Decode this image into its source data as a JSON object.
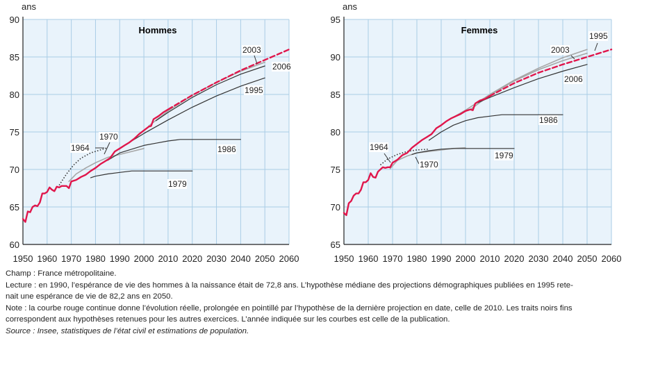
{
  "chart_data": [
    {
      "type": "line",
      "title": "Hommes",
      "ylabel": "ans",
      "xlabel": "",
      "xlim": [
        1950,
        2060
      ],
      "ylim": [
        60,
        90
      ],
      "xticks": [
        "1950",
        "1960",
        "1970",
        "1980",
        "1990",
        "2000",
        "2010",
        "2020",
        "2030",
        "2040",
        "2050",
        "2060"
      ],
      "yticks": [
        "60",
        "65",
        "70",
        "75",
        "80",
        "85",
        "90"
      ],
      "grid": true,
      "series": [
        {
          "name": "",
          "color": "#e0164b",
          "style": "solid",
          "width": 2.4,
          "points": [
            [
              1950,
              63.4
            ],
            [
              1951,
              63.0
            ],
            [
              1952,
              64.4
            ],
            [
              1953,
              64.3
            ],
            [
              1954,
              65.0
            ],
            [
              1955,
              65.2
            ],
            [
              1956,
              65.1
            ],
            [
              1957,
              65.6
            ],
            [
              1958,
              66.8
            ],
            [
              1959,
              66.8
            ],
            [
              1960,
              67.0
            ],
            [
              1961,
              67.6
            ],
            [
              1962,
              67.3
            ],
            [
              1963,
              67.1
            ],
            [
              1964,
              67.7
            ],
            [
              1965,
              67.6
            ],
            [
              1966,
              67.8
            ],
            [
              1967,
              67.8
            ],
            [
              1968,
              67.8
            ],
            [
              1969,
              67.5
            ],
            [
              1970,
              68.4
            ],
            [
              1972,
              68.6
            ],
            [
              1974,
              69.0
            ],
            [
              1976,
              69.3
            ],
            [
              1978,
              69.8
            ],
            [
              1980,
              70.2
            ],
            [
              1982,
              70.7
            ],
            [
              1984,
              71.1
            ],
            [
              1986,
              71.5
            ],
            [
              1988,
              72.4
            ],
            [
              1990,
              72.8
            ],
            [
              1992,
              73.2
            ],
            [
              1994,
              73.6
            ],
            [
              1996,
              74.1
            ],
            [
              1998,
              74.7
            ],
            [
              2000,
              75.2
            ],
            [
              2002,
              75.7
            ],
            [
              2003,
              75.8
            ],
            [
              2004,
              76.7
            ],
            [
              2006,
              77.1
            ],
            [
              2008,
              77.6
            ],
            [
              2010,
              78.0
            ]
          ]
        },
        {
          "name": "",
          "color": "#e0164b",
          "style": "dashed",
          "width": 2.4,
          "points": [
            [
              2010,
              78.0
            ],
            [
              2020,
              79.9
            ],
            [
              2030,
              81.6
            ],
            [
              2040,
              83.2
            ],
            [
              2050,
              84.6
            ],
            [
              2060,
              86.0
            ]
          ]
        },
        {
          "name": "1964",
          "color": "#333333",
          "style": "dotted",
          "width": 1.6,
          "points": [
            [
              1965,
              67.9
            ],
            [
              1968,
              69.4
            ],
            [
              1971,
              70.6
            ],
            [
              1974,
              71.5
            ],
            [
              1978,
              72.2
            ],
            [
              1982,
              72.6
            ],
            [
              1985,
              72.9
            ]
          ]
        },
        {
          "name": "1970",
          "color": "#a6a6a6",
          "style": "solid",
          "width": 1.6,
          "points": [
            [
              1969,
              68.4
            ],
            [
              1972,
              69.4
            ],
            [
              1976,
              70.2
            ],
            [
              1980,
              70.9
            ],
            [
              1985,
              71.6
            ],
            [
              1990,
              72.0
            ],
            [
              1995,
              72.4
            ],
            [
              2000,
              72.8
            ]
          ]
        },
        {
          "name": "1979",
          "color": "#333333",
          "style": "solid",
          "width": 1.2,
          "points": [
            [
              1978,
              68.9
            ],
            [
              1980,
              69.1
            ],
            [
              1985,
              69.4
            ],
            [
              1990,
              69.6
            ],
            [
              1995,
              69.8
            ],
            [
              2000,
              69.8
            ],
            [
              2010,
              69.8
            ],
            [
              2020,
              69.8
            ]
          ]
        },
        {
          "name": "1986",
          "color": "#333333",
          "style": "solid",
          "width": 1.2,
          "points": [
            [
              1985,
              71.2
            ],
            [
              1990,
              72.2
            ],
            [
              1995,
              72.7
            ],
            [
              2000,
              73.2
            ],
            [
              2005,
              73.5
            ],
            [
              2010,
              73.8
            ],
            [
              2015,
              74.0
            ],
            [
              2020,
              74.0
            ],
            [
              2030,
              74.0
            ],
            [
              2040,
              74.0
            ]
          ]
        },
        {
          "name": "1995",
          "color": "#333333",
          "style": "solid",
          "width": 1.2,
          "points": [
            [
              1993,
              73.4
            ],
            [
              2000,
              74.8
            ],
            [
              2010,
              76.6
            ],
            [
              2020,
              78.3
            ],
            [
              2030,
              79.8
            ],
            [
              2040,
              81.1
            ],
            [
              2050,
              82.2
            ]
          ]
        },
        {
          "name": "2003",
          "color": "#a6a6a6",
          "style": "solid",
          "width": 1.6,
          "points": [
            [
              2002,
              75.8
            ],
            [
              2010,
              77.8
            ],
            [
              2020,
              79.9
            ],
            [
              2030,
              81.6
            ],
            [
              2040,
              83.1
            ],
            [
              2050,
              84.3
            ]
          ]
        },
        {
          "name": "2006",
          "color": "#333333",
          "style": "solid",
          "width": 1.2,
          "points": [
            [
              2005,
              76.5
            ],
            [
              2010,
              77.6
            ],
            [
              2020,
              79.6
            ],
            [
              2030,
              81.3
            ],
            [
              2040,
              82.7
            ],
            [
              2050,
              83.8
            ]
          ]
        }
      ],
      "annotations": [
        "1964",
        "1970",
        "1979",
        "1986",
        "1995",
        "2003",
        "2006"
      ]
    },
    {
      "type": "line",
      "title": "Femmes",
      "ylabel": "ans",
      "xlabel": "",
      "xlim": [
        1950,
        2060
      ],
      "ylim": [
        65,
        95
      ],
      "xticks": [
        "1950",
        "1960",
        "1970",
        "1980",
        "1990",
        "2000",
        "2010",
        "2020",
        "2030",
        "2040",
        "2050",
        "2060"
      ],
      "yticks": [
        "65",
        "70",
        "75",
        "80",
        "85",
        "90",
        "95"
      ],
      "grid": true,
      "series": [
        {
          "name": "",
          "color": "#e0164b",
          "style": "solid",
          "width": 2.4,
          "points": [
            [
              1950,
              69.2
            ],
            [
              1951,
              68.9
            ],
            [
              1952,
              70.5
            ],
            [
              1953,
              70.8
            ],
            [
              1954,
              71.5
            ],
            [
              1955,
              71.8
            ],
            [
              1956,
              71.8
            ],
            [
              1957,
              72.3
            ],
            [
              1958,
              73.3
            ],
            [
              1959,
              73.3
            ],
            [
              1960,
              73.6
            ],
            [
              1961,
              74.5
            ],
            [
              1962,
              74.0
            ],
            [
              1963,
              73.9
            ],
            [
              1964,
              74.7
            ],
            [
              1965,
              75.0
            ],
            [
              1966,
              75.3
            ],
            [
              1967,
              75.2
            ],
            [
              1968,
              75.3
            ],
            [
              1969,
              75.3
            ],
            [
              1970,
              75.9
            ],
            [
              1972,
              76.3
            ],
            [
              1974,
              76.9
            ],
            [
              1976,
              77.2
            ],
            [
              1978,
              77.9
            ],
            [
              1980,
              78.4
            ],
            [
              1982,
              78.9
            ],
            [
              1984,
              79.3
            ],
            [
              1986,
              79.7
            ],
            [
              1988,
              80.5
            ],
            [
              1990,
              80.9
            ],
            [
              1992,
              81.4
            ],
            [
              1994,
              81.8
            ],
            [
              1996,
              82.1
            ],
            [
              1998,
              82.4
            ],
            [
              2000,
              82.8
            ],
            [
              2002,
              83.0
            ],
            [
              2003,
              82.9
            ],
            [
              2004,
              83.8
            ],
            [
              2006,
              84.2
            ],
            [
              2008,
              84.4
            ],
            [
              2010,
              84.8
            ]
          ]
        },
        {
          "name": "",
          "color": "#e0164b",
          "style": "dashed",
          "width": 2.4,
          "points": [
            [
              2010,
              84.8
            ],
            [
              2020,
              86.5
            ],
            [
              2030,
              87.9
            ],
            [
              2040,
              89.0
            ],
            [
              2050,
              90.0
            ],
            [
              2060,
              91.0
            ]
          ]
        },
        {
          "name": "1964",
          "color": "#333333",
          "style": "dotted",
          "width": 1.6,
          "points": [
            [
              1965,
              75.6
            ],
            [
              1968,
              76.4
            ],
            [
              1972,
              77.0
            ],
            [
              1976,
              77.4
            ],
            [
              1980,
              77.6
            ],
            [
              1985,
              77.7
            ]
          ]
        },
        {
          "name": "1970",
          "color": "#a6a6a6",
          "style": "solid",
          "width": 1.6,
          "points": [
            [
              1969,
              75.1
            ],
            [
              1972,
              76.2
            ],
            [
              1976,
              76.8
            ],
            [
              1980,
              77.2
            ],
            [
              1985,
              77.4
            ],
            [
              1990,
              77.6
            ],
            [
              1995,
              77.8
            ],
            [
              2000,
              77.9
            ]
          ]
        },
        {
          "name": "1979",
          "color": "#333333",
          "style": "solid",
          "width": 1.2,
          "points": [
            [
              1978,
              77.0
            ],
            [
              1980,
              77.2
            ],
            [
              1985,
              77.5
            ],
            [
              1990,
              77.7
            ],
            [
              1995,
              77.8
            ],
            [
              2000,
              77.8
            ],
            [
              2010,
              77.8
            ],
            [
              2020,
              77.8
            ]
          ]
        },
        {
          "name": "1986",
          "color": "#333333",
          "style": "solid",
          "width": 1.2,
          "points": [
            [
              1985,
              78.9
            ],
            [
              1990,
              80.0
            ],
            [
              1995,
              80.9
            ],
            [
              2000,
              81.5
            ],
            [
              2005,
              81.9
            ],
            [
              2010,
              82.1
            ],
            [
              2015,
              82.3
            ],
            [
              2020,
              82.3
            ],
            [
              2030,
              82.3
            ],
            [
              2040,
              82.3
            ]
          ]
        },
        {
          "name": "1995",
          "color": "#a6a6a6",
          "style": "solid",
          "width": 1.6,
          "points": [
            [
              1993,
              81.6
            ],
            [
              2000,
              82.9
            ],
            [
              2010,
              85.0
            ],
            [
              2020,
              86.9
            ],
            [
              2030,
              88.5
            ],
            [
              2040,
              89.9
            ],
            [
              2050,
              91.0
            ]
          ]
        },
        {
          "name": "2003",
          "color": "#a6a6a6",
          "style": "solid",
          "width": 1.6,
          "points": [
            [
              2002,
              83.0
            ],
            [
              2010,
              84.9
            ],
            [
              2020,
              86.8
            ],
            [
              2030,
              88.3
            ],
            [
              2040,
              89.5
            ],
            [
              2050,
              90.5
            ]
          ]
        },
        {
          "name": "2006",
          "color": "#333333",
          "style": "solid",
          "width": 1.2,
          "points": [
            [
              2005,
              83.9
            ],
            [
              2010,
              84.6
            ],
            [
              2020,
              85.9
            ],
            [
              2030,
              87.1
            ],
            [
              2040,
              88.1
            ],
            [
              2050,
              89.0
            ]
          ]
        }
      ],
      "annotations": [
        "1964",
        "1970",
        "1979",
        "1986",
        "1995",
        "2003",
        "2006"
      ]
    }
  ],
  "notes": {
    "champ": "Champ : France métropolitaine.",
    "lecture_1": "Lecture : en 1990, l’espérance de vie des hommes à la naissance était de 72,8 ans. L’hypothèse médiane des projections démographiques publiées en 1995 rete-",
    "lecture_2": "nait une espérance de vie de 82,2 ans en 2050.",
    "note_1": "Note : la courbe rouge continue donne l’évolution réelle, prolongée en pointillé par l’hypothèse de la dernière projection en date, celle de 2010. Les traits noirs fins",
    "note_2": "correspondent aux hypothèses retenues pour les autres exercices. L’année indiquée sur les courbes est celle de la publication.",
    "source": "Source : Insee, statistiques de l’état civil et estimations de population."
  }
}
